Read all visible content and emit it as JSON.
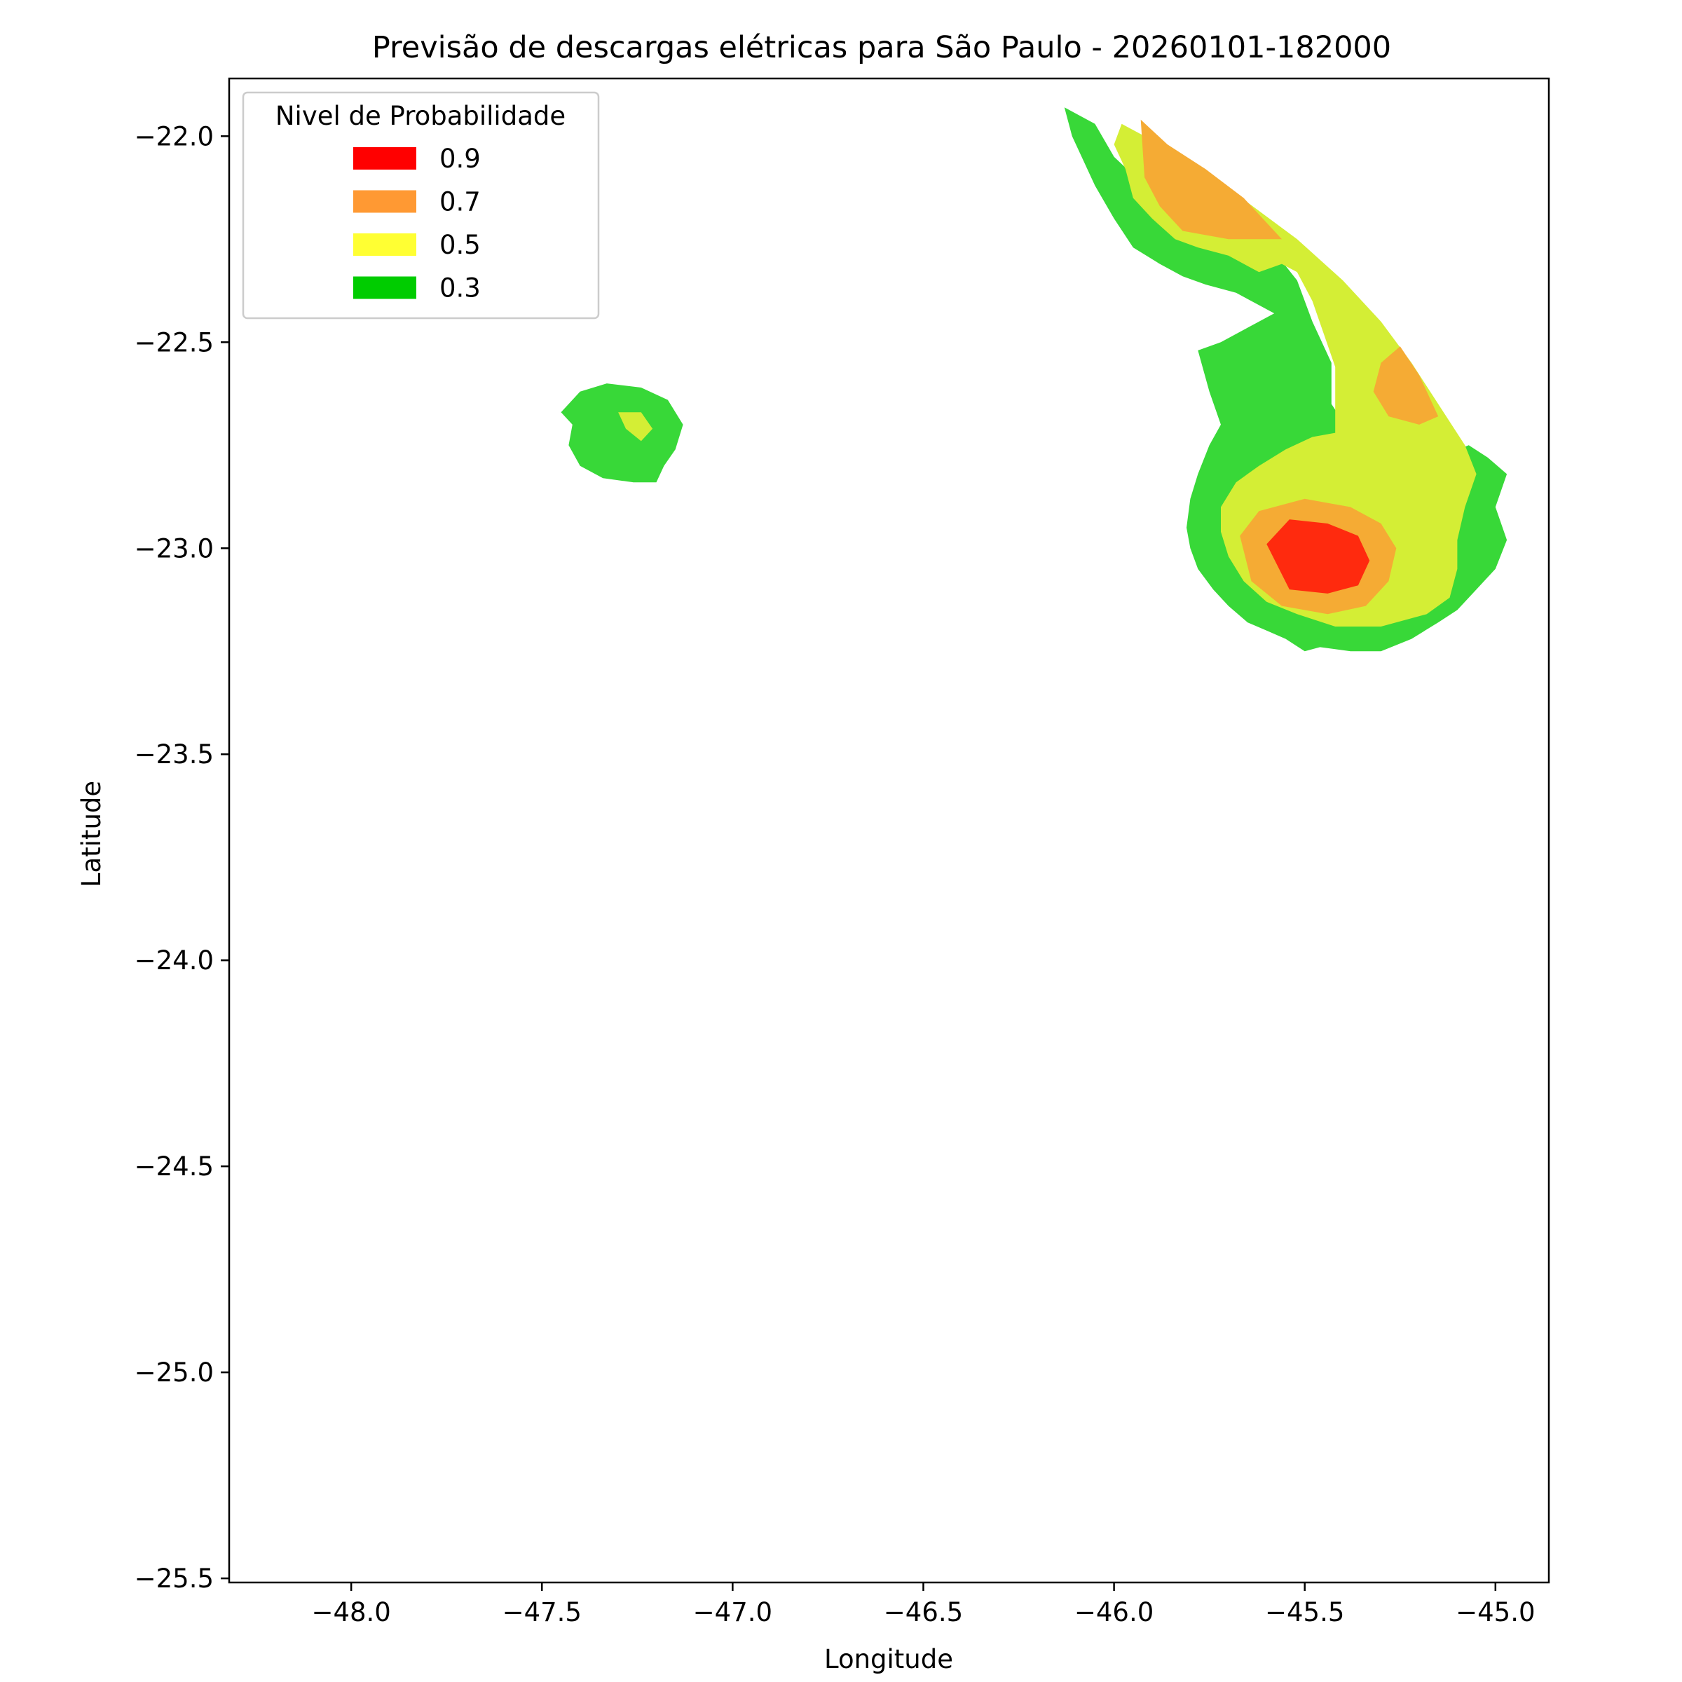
{
  "chart_data": {
    "type": "contour",
    "title": "Previsão de descargas elétricas para São Paulo - 20260101-182000",
    "xlabel": "Longitude",
    "ylabel": "Latitude",
    "xlim": [
      -48.32,
      -44.86
    ],
    "ylim": [
      -25.51,
      -21.86
    ],
    "xticks": [
      -48.0,
      -47.5,
      -47.0,
      -46.5,
      -46.0,
      -45.5,
      -45.0
    ],
    "xtick_labels": [
      "−48.0",
      "−47.5",
      "−47.0",
      "−46.5",
      "−46.0",
      "−45.5",
      "−45.0"
    ],
    "yticks": [
      -22.0,
      -22.5,
      -23.0,
      -23.5,
      -24.0,
      -24.5,
      -25.0,
      -25.5
    ],
    "ytick_labels": [
      "−22.0",
      "−22.5",
      "−23.0",
      "−23.5",
      "−24.0",
      "−24.5",
      "−25.0",
      "−25.5"
    ],
    "grid": false,
    "legend": {
      "title": "Nivel de Probabilidade",
      "position": "top-left",
      "entries": [
        {
          "label": "0.9",
          "color": "#ff0000"
        },
        {
          "label": "0.7",
          "color": "#ff9933"
        },
        {
          "label": "0.5",
          "color": "#ffff33"
        },
        {
          "label": "0.3",
          "color": "#00cc00"
        }
      ]
    },
    "fill_colors": {
      "0.3": "#38d838",
      "0.5": "#d4ee35",
      "0.7": "#f5ab34",
      "0.9": "#ff2a0e"
    },
    "regions": [
      {
        "level": "0.3",
        "points": [
          [
            -46.13,
            -21.93
          ],
          [
            -46.05,
            -21.97
          ],
          [
            -46.0,
            -22.05
          ],
          [
            -45.92,
            -22.12
          ],
          [
            -45.8,
            -22.18
          ],
          [
            -45.68,
            -22.22
          ],
          [
            -45.58,
            -22.28
          ],
          [
            -45.52,
            -22.35
          ],
          [
            -45.48,
            -22.45
          ],
          [
            -45.43,
            -22.55
          ],
          [
            -45.43,
            -22.65
          ],
          [
            -45.38,
            -22.72
          ],
          [
            -45.3,
            -22.78
          ],
          [
            -45.22,
            -22.82
          ],
          [
            -45.15,
            -22.78
          ],
          [
            -45.07,
            -22.75
          ],
          [
            -45.02,
            -22.78
          ],
          [
            -44.97,
            -22.82
          ],
          [
            -45.0,
            -22.9
          ],
          [
            -44.97,
            -22.98
          ],
          [
            -45.0,
            -23.05
          ],
          [
            -45.05,
            -23.1
          ],
          [
            -45.1,
            -23.15
          ],
          [
            -45.15,
            -23.18
          ],
          [
            -45.22,
            -23.22
          ],
          [
            -45.3,
            -23.25
          ],
          [
            -45.38,
            -23.25
          ],
          [
            -45.46,
            -23.24
          ],
          [
            -45.5,
            -23.25
          ],
          [
            -45.55,
            -23.22
          ],
          [
            -45.6,
            -23.2
          ],
          [
            -45.65,
            -23.18
          ],
          [
            -45.7,
            -23.14
          ],
          [
            -45.74,
            -23.1
          ],
          [
            -45.78,
            -23.05
          ],
          [
            -45.8,
            -23.0
          ],
          [
            -45.81,
            -22.95
          ],
          [
            -45.8,
            -22.88
          ],
          [
            -45.78,
            -22.82
          ],
          [
            -45.75,
            -22.75
          ],
          [
            -45.72,
            -22.7
          ],
          [
            -45.75,
            -22.62
          ],
          [
            -45.78,
            -22.52
          ],
          [
            -45.72,
            -22.5
          ],
          [
            -45.66,
            -22.47
          ],
          [
            -45.62,
            -22.45
          ],
          [
            -45.58,
            -22.43
          ],
          [
            -45.62,
            -22.41
          ],
          [
            -45.68,
            -22.38
          ],
          [
            -45.76,
            -22.36
          ],
          [
            -45.82,
            -22.34
          ],
          [
            -45.88,
            -22.31
          ],
          [
            -45.95,
            -22.27
          ],
          [
            -46.0,
            -22.2
          ],
          [
            -46.05,
            -22.12
          ],
          [
            -46.08,
            -22.06
          ],
          [
            -46.11,
            -22.0
          ]
        ]
      },
      {
        "level": "0.5",
        "points": [
          [
            -45.98,
            -21.97
          ],
          [
            -45.92,
            -22.0
          ],
          [
            -45.8,
            -22.06
          ],
          [
            -45.68,
            -22.14
          ],
          [
            -45.52,
            -22.25
          ],
          [
            -45.4,
            -22.35
          ],
          [
            -45.3,
            -22.45
          ],
          [
            -45.22,
            -22.55
          ],
          [
            -45.15,
            -22.65
          ],
          [
            -45.08,
            -22.75
          ],
          [
            -45.05,
            -22.82
          ],
          [
            -45.08,
            -22.9
          ],
          [
            -45.1,
            -22.98
          ],
          [
            -45.1,
            -23.05
          ],
          [
            -45.12,
            -23.12
          ],
          [
            -45.18,
            -23.16
          ],
          [
            -45.3,
            -23.19
          ],
          [
            -45.42,
            -23.19
          ],
          [
            -45.52,
            -23.16
          ],
          [
            -45.6,
            -23.13
          ],
          [
            -45.66,
            -23.08
          ],
          [
            -45.7,
            -23.02
          ],
          [
            -45.72,
            -22.96
          ],
          [
            -45.72,
            -22.9
          ],
          [
            -45.68,
            -22.84
          ],
          [
            -45.62,
            -22.8
          ],
          [
            -45.55,
            -22.76
          ],
          [
            -45.48,
            -22.73
          ],
          [
            -45.42,
            -22.72
          ],
          [
            -45.42,
            -22.64
          ],
          [
            -45.42,
            -22.56
          ],
          [
            -45.45,
            -22.48
          ],
          [
            -45.48,
            -22.4
          ],
          [
            -45.52,
            -22.33
          ],
          [
            -45.56,
            -22.31
          ],
          [
            -45.62,
            -22.33
          ],
          [
            -45.7,
            -22.29
          ],
          [
            -45.78,
            -22.27
          ],
          [
            -45.84,
            -22.25
          ],
          [
            -45.9,
            -22.2
          ],
          [
            -45.95,
            -22.15
          ],
          [
            -45.97,
            -22.08
          ],
          [
            -46.0,
            -22.02
          ]
        ]
      },
      {
        "level": "0.7",
        "points": [
          [
            -45.93,
            -21.96
          ],
          [
            -45.86,
            -22.02
          ],
          [
            -45.76,
            -22.08
          ],
          [
            -45.66,
            -22.15
          ],
          [
            -45.56,
            -22.25
          ],
          [
            -45.7,
            -22.25
          ],
          [
            -45.82,
            -22.23
          ],
          [
            -45.88,
            -22.17
          ],
          [
            -45.92,
            -22.1
          ]
        ]
      },
      {
        "level": "0.7",
        "points": [
          [
            -45.25,
            -22.51
          ],
          [
            -45.2,
            -22.58
          ],
          [
            -45.15,
            -22.68
          ],
          [
            -45.2,
            -22.7
          ],
          [
            -45.28,
            -22.68
          ],
          [
            -45.32,
            -22.62
          ],
          [
            -45.3,
            -22.55
          ]
        ]
      },
      {
        "level": "0.7",
        "points": [
          [
            -45.67,
            -22.97
          ],
          [
            -45.62,
            -22.91
          ],
          [
            -45.5,
            -22.88
          ],
          [
            -45.38,
            -22.9
          ],
          [
            -45.3,
            -22.94
          ],
          [
            -45.26,
            -23.0
          ],
          [
            -45.28,
            -23.08
          ],
          [
            -45.34,
            -23.14
          ],
          [
            -45.44,
            -23.16
          ],
          [
            -45.56,
            -23.14
          ],
          [
            -45.64,
            -23.08
          ]
        ]
      },
      {
        "level": "0.9",
        "points": [
          [
            -45.6,
            -22.99
          ],
          [
            -45.54,
            -22.93
          ],
          [
            -45.44,
            -22.94
          ],
          [
            -45.36,
            -22.97
          ],
          [
            -45.33,
            -23.03
          ],
          [
            -45.36,
            -23.09
          ],
          [
            -45.44,
            -23.11
          ],
          [
            -45.54,
            -23.1
          ]
        ]
      },
      {
        "level": "0.3",
        "points": [
          [
            -47.45,
            -22.67
          ],
          [
            -47.4,
            -22.62
          ],
          [
            -47.33,
            -22.6
          ],
          [
            -47.24,
            -22.61
          ],
          [
            -47.17,
            -22.64
          ],
          [
            -47.13,
            -22.7
          ],
          [
            -47.15,
            -22.76
          ],
          [
            -47.18,
            -22.8
          ],
          [
            -47.2,
            -22.84
          ],
          [
            -47.26,
            -22.84
          ],
          [
            -47.34,
            -22.83
          ],
          [
            -47.4,
            -22.8
          ],
          [
            -47.43,
            -22.75
          ],
          [
            -47.42,
            -22.7
          ]
        ]
      },
      {
        "level": "0.5",
        "points": [
          [
            -47.3,
            -22.67
          ],
          [
            -47.24,
            -22.67
          ],
          [
            -47.21,
            -22.71
          ],
          [
            -47.24,
            -22.74
          ],
          [
            -47.28,
            -22.71
          ]
        ]
      }
    ]
  }
}
